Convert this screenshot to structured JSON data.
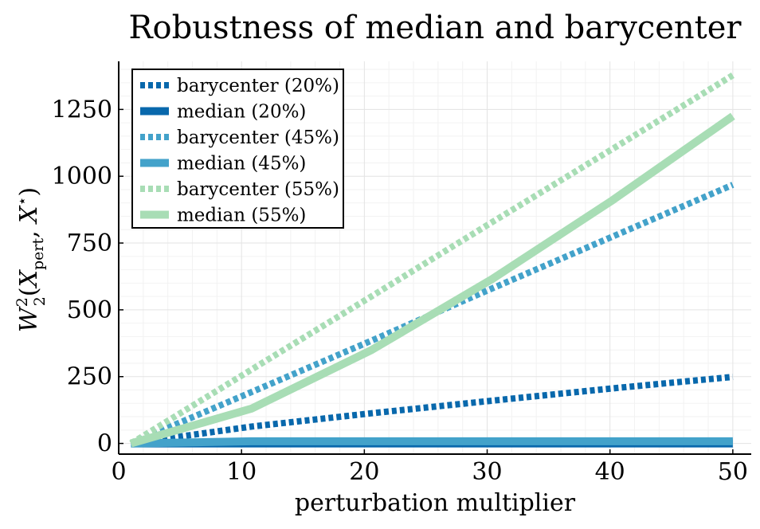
{
  "chart_data": {
    "type": "line",
    "title": "Robustness of median and barycenter",
    "xlabel": "perturbation multiplier",
    "ylabel": {
      "w": "W",
      "sup": "2",
      "sub": "2",
      "open": "(",
      "x1": "X",
      "x1_sub": "pert",
      "comma": ", ",
      "x2": "X",
      "x2_sup": "⋆",
      "close": ")"
    },
    "xlim": [
      0,
      51.5
    ],
    "ylim": [
      -40,
      1430
    ],
    "xticks": [
      0,
      10,
      20,
      30,
      40,
      50
    ],
    "yticks": [
      0,
      250,
      500,
      750,
      1000,
      1250
    ],
    "grid": true,
    "legend_position": "top-left",
    "x": [
      1,
      10.8,
      20.6,
      30.4,
      40.2,
      50
    ],
    "series": [
      {
        "name": "barycenter (20%)",
        "style": "dotted",
        "color": "#0868ac",
        "values": [
          0,
          63,
          113,
          160,
          206,
          249
        ]
      },
      {
        "name": "median (20%)",
        "style": "solid",
        "color": "#0868ac",
        "values": [
          0,
          0,
          0,
          0,
          0,
          0
        ]
      },
      {
        "name": "barycenter (45%)",
        "style": "dotted",
        "color": "#43a2ca",
        "values": [
          0,
          192,
          385,
          580,
          774,
          968
        ]
      },
      {
        "name": "median (45%)",
        "style": "solid",
        "color": "#43a2ca",
        "values": [
          0,
          8,
          8,
          8,
          8,
          8
        ]
      },
      {
        "name": "barycenter (55%)",
        "style": "dotted",
        "color": "#a8ddb5",
        "values": [
          0,
          276,
          551,
          828,
          1102,
          1378
        ]
      },
      {
        "name": "median (55%)",
        "style": "solid",
        "color": "#a8ddb5",
        "values": [
          0,
          130,
          350,
          615,
          910,
          1225
        ]
      }
    ]
  }
}
